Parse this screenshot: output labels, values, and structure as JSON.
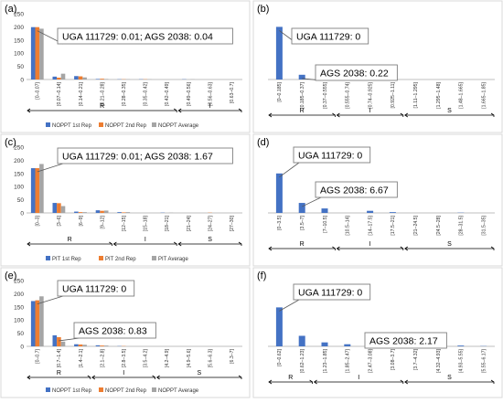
{
  "colors": {
    "rep1": "#4472c4",
    "rep2": "#ed7d31",
    "avg": "#a5a5a5",
    "axis": "#bfbfbf",
    "text": "#333333",
    "callout_border": "#7f7f7f"
  },
  "panels": [
    {
      "label": "(a)",
      "type": "bar",
      "categories": [
        "[0–0.07]",
        "[0.07–0.14]",
        "[0.14–0.21]",
        "[0.21–0.28]",
        "[0.28–0.35]",
        "[0.35–0.42]",
        "[0.42–0.49]",
        "[0.49–0.56]",
        "[0.56–0.63]",
        "[0.63–0.7]"
      ],
      "series": [
        {
          "name": "NOPPT 1st Rep",
          "values": [
            199,
            11,
            13,
            2,
            1,
            1,
            0,
            1,
            0,
            0
          ]
        },
        {
          "name": "NOPPT 2nd Rep",
          "values": [
            199,
            7,
            12,
            3,
            1,
            1,
            0,
            0,
            0,
            0
          ]
        },
        {
          "name": "NOPPT Average",
          "values": [
            193,
            22,
            8,
            2,
            1,
            1,
            0,
            1,
            0,
            0
          ]
        }
      ],
      "ylim": [
        0,
        250
      ],
      "yticks": [
        0,
        50,
        100,
        150,
        200,
        250
      ],
      "groups": [
        {
          "label": "R",
          "from": 0,
          "to": 6
        },
        {
          "label": "I",
          "from": 7,
          "to": 9
        }
      ],
      "callouts": [
        "UGA 111729: 0.01; AGS 2038: 0.04"
      ]
    },
    {
      "label": "(b)",
      "type": "bar",
      "categories": [
        "[0–0.185]",
        "[0.185–0.37]",
        "[0.37–0.555]",
        "[0.555–0.74]",
        "[0.74–0.925]",
        "[0.925–1.11]",
        "[1.11–1.295]",
        "[1.295–1.48]",
        "[1.48–1.665]",
        "[1.665–1.85]"
      ],
      "series": [
        {
          "name": "",
          "values": [
            200,
            18,
            2,
            0,
            0,
            0,
            0,
            0,
            0,
            0
          ]
        }
      ],
      "ylim": [
        0,
        250
      ],
      "yticks": [],
      "groups": [
        {
          "label": "R",
          "from": 0,
          "to": 2
        },
        {
          "label": "I",
          "from": 3,
          "to": 5
        },
        {
          "label": "S",
          "from": 6,
          "to": 9
        }
      ],
      "callouts": [
        "UGA 111729: 0",
        "AGS 2038: 0.22"
      ]
    },
    {
      "label": "(c)",
      "type": "bar",
      "categories": [
        "[0–3]",
        "[3–6]",
        "[6–9]",
        "[9–12]",
        "[12–15]",
        "[15–18]",
        "[18–21]",
        "[21–24]",
        "[24–27]",
        "[27–30]"
      ],
      "series": [
        {
          "name": "PIT 1st Rep",
          "values": [
            170,
            38,
            5,
            10,
            3,
            0,
            1,
            0,
            0,
            0
          ]
        },
        {
          "name": "PIT 2nd Rep",
          "values": [
            170,
            37,
            3,
            8,
            2,
            0,
            0,
            0,
            1,
            0
          ]
        },
        {
          "name": "PIT Average",
          "values": [
            186,
            26,
            3,
            9,
            3,
            0,
            1,
            0,
            0,
            0
          ]
        }
      ],
      "ylim": [
        0,
        250
      ],
      "yticks": [
        0,
        50,
        100,
        150,
        200,
        250
      ],
      "groups": [
        {
          "label": "R",
          "from": 0,
          "to": 3
        },
        {
          "label": "I",
          "from": 4,
          "to": 6
        },
        {
          "label": "S",
          "from": 7,
          "to": 9
        }
      ],
      "callouts": [
        "UGA 111729: 0.01; AGS 2038: 1.67"
      ]
    },
    {
      "label": "(d)",
      "type": "bar",
      "categories": [
        "[0–3.5]",
        "[3.5–7]",
        "[7–10.5]",
        "[10.5–14]",
        "[14–17.5]",
        "[17.5–21]",
        "[21–24.5]",
        "[24.5–28]",
        "[28–31.5]",
        "[31.5–35]"
      ],
      "series": [
        {
          "name": "",
          "values": [
            150,
            38,
            17,
            0,
            8,
            3,
            0,
            0,
            1,
            0
          ]
        }
      ],
      "ylim": [
        0,
        250
      ],
      "yticks": [],
      "groups": [
        {
          "label": "R",
          "from": 0,
          "to": 2
        },
        {
          "label": "I",
          "from": 3,
          "to": 5
        },
        {
          "label": "S",
          "from": 6,
          "to": 9
        }
      ],
      "callouts": [
        "UGA 111729: 0",
        "AGS 2038: 6.67"
      ]
    },
    {
      "label": "(e)",
      "type": "bar",
      "categories": [
        "[0–0.7]",
        "[0.7–1.4]",
        "[1.4–2.1]",
        "[2.1–2.8]",
        "[2.8–3.5]",
        "[3.5–4.2]",
        "[4.2–4.9]",
        "[4.9–5.6]",
        "[5.6–6.3]",
        "[6.3–7]"
      ],
      "series": [
        {
          "name": "NOPPT 1st Rep",
          "values": [
            172,
            42,
            8,
            4,
            1,
            0,
            0,
            0,
            0,
            0
          ]
        },
        {
          "name": "NOPPT 2nd Rep",
          "values": [
            175,
            35,
            7,
            3,
            1,
            0,
            0,
            0,
            0,
            0
          ]
        },
        {
          "name": "NOPPT Average",
          "values": [
            190,
            18,
            6,
            3,
            0,
            0,
            0,
            0,
            0,
            0
          ]
        }
      ],
      "ylim": [
        0,
        250
      ],
      "yticks": [
        0,
        50,
        100,
        150,
        200,
        250
      ],
      "groups": [
        {
          "label": "R",
          "from": 0,
          "to": 2
        },
        {
          "label": "I",
          "from": 3,
          "to": 5
        },
        {
          "label": "S",
          "from": 6,
          "to": 9
        }
      ],
      "callouts": [
        "UGA 111729: 0",
        "AGS 2038: 0.83"
      ]
    },
    {
      "label": "(f)",
      "type": "bar",
      "categories": [
        "[0–0.62]",
        "[0.62–1.23]",
        "[1.23–1.85]",
        "[1.85–2.47]",
        "[2.47–3.08]",
        "[3.08–3.7]",
        "[3.7–4.32]",
        "[4.32–4.93]",
        "[4.93–5.55]",
        "[5.55–6.17]"
      ],
      "series": [
        {
          "name": "",
          "values": [
            148,
            40,
            15,
            8,
            5,
            0,
            0,
            0,
            3,
            1
          ]
        }
      ],
      "ylim": [
        0,
        250
      ],
      "yticks": [],
      "groups": [
        {
          "label": "R",
          "from": 0,
          "to": 1
        },
        {
          "label": "I",
          "from": 2,
          "to": 5
        },
        {
          "label": "S",
          "from": 6,
          "to": 9
        }
      ],
      "callouts": [
        "UGA 111729: 0",
        "AGS 2038: 2.17"
      ]
    }
  ]
}
